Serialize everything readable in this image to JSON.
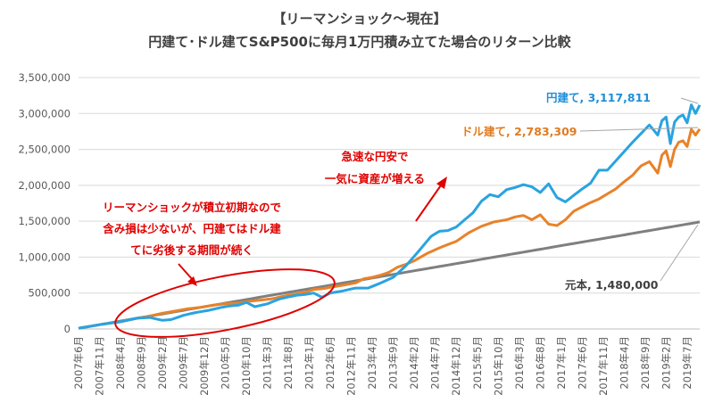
{
  "chart_data": {
    "type": "line",
    "title": "【リーマンショック〜現在】",
    "subtitle": "円建て･ドル建てS&P500に毎月1万円積み立てた場合のリターン比較",
    "ylim": [
      0,
      3500000
    ],
    "yticks": [
      0,
      500000,
      1000000,
      1500000,
      2000000,
      2500000,
      3000000,
      3500000
    ],
    "ytick_labels": [
      "0",
      "500,000",
      "1,000,000",
      "1,500,000",
      "2,000,000",
      "2,500,000",
      "3,000,000",
      "3,500,000"
    ],
    "start": "2007年6月",
    "months": 148,
    "x_tick_labels": [
      "2007年6月",
      "2007年11月",
      "2008年4月",
      "2008年9月",
      "2009年2月",
      "2009年7月",
      "2009年12月",
      "2010年5月",
      "2010年10月",
      "2011年3月",
      "2011年8月",
      "2012年1月",
      "2012年6月",
      "2012年11月",
      "2013年4月",
      "2013年9月",
      "2014年2月",
      "2014年7月",
      "2014年12月",
      "2015年5月",
      "2015年10月",
      "2016年3月",
      "2016年8月",
      "2017年1月",
      "2017年6月",
      "2017年11月",
      "2018年4月",
      "2018年9月",
      "2019年2月",
      "2019年7月"
    ],
    "x_tick_step": 5,
    "series": [
      {
        "name": "円建て",
        "color": "#29a3e0",
        "end_label": "円建て, 3,117,811",
        "anchors": [
          [
            0,
            10000
          ],
          [
            5,
            60000
          ],
          [
            10,
            100000
          ],
          [
            14,
            150000
          ],
          [
            17,
            160000
          ],
          [
            20,
            120000
          ],
          [
            22,
            130000
          ],
          [
            25,
            190000
          ],
          [
            28,
            230000
          ],
          [
            31,
            260000
          ],
          [
            34,
            300000
          ],
          [
            36,
            320000
          ],
          [
            38,
            330000
          ],
          [
            40,
            370000
          ],
          [
            42,
            310000
          ],
          [
            45,
            350000
          ],
          [
            48,
            420000
          ],
          [
            52,
            470000
          ],
          [
            54,
            480000
          ],
          [
            56,
            500000
          ],
          [
            58,
            440000
          ],
          [
            60,
            500000
          ],
          [
            63,
            530000
          ],
          [
            66,
            570000
          ],
          [
            69,
            570000
          ],
          [
            72,
            640000
          ],
          [
            75,
            720000
          ],
          [
            78,
            880000
          ],
          [
            81,
            1080000
          ],
          [
            84,
            1290000
          ],
          [
            86,
            1360000
          ],
          [
            88,
            1370000
          ],
          [
            90,
            1420000
          ],
          [
            92,
            1520000
          ],
          [
            94,
            1620000
          ],
          [
            96,
            1780000
          ],
          [
            98,
            1870000
          ],
          [
            100,
            1840000
          ],
          [
            102,
            1940000
          ],
          [
            104,
            1970000
          ],
          [
            106,
            2010000
          ],
          [
            108,
            1980000
          ],
          [
            110,
            1900000
          ],
          [
            112,
            2020000
          ],
          [
            114,
            1830000
          ],
          [
            116,
            1770000
          ],
          [
            118,
            1860000
          ],
          [
            120,
            1950000
          ],
          [
            122,
            2030000
          ],
          [
            124,
            2210000
          ],
          [
            126,
            2210000
          ],
          [
            128,
            2340000
          ],
          [
            130,
            2470000
          ],
          [
            132,
            2600000
          ],
          [
            134,
            2720000
          ],
          [
            136,
            2840000
          ],
          [
            138,
            2700000
          ],
          [
            139,
            2900000
          ],
          [
            140,
            2950000
          ],
          [
            141,
            2580000
          ],
          [
            142,
            2880000
          ],
          [
            143,
            2950000
          ],
          [
            144,
            2980000
          ],
          [
            145,
            2870000
          ],
          [
            146,
            3120000
          ],
          [
            147,
            3000000
          ],
          [
            148,
            3117811
          ]
        ]
      },
      {
        "name": "ドル建て",
        "color": "#e8822a",
        "end_label": "ドル建て, 2,783,309",
        "anchors": [
          [
            0,
            10000
          ],
          [
            5,
            60000
          ],
          [
            10,
            100000
          ],
          [
            14,
            150000
          ],
          [
            17,
            180000
          ],
          [
            20,
            220000
          ],
          [
            23,
            250000
          ],
          [
            26,
            280000
          ],
          [
            29,
            300000
          ],
          [
            32,
            330000
          ],
          [
            35,
            350000
          ],
          [
            38,
            360000
          ],
          [
            40,
            380000
          ],
          [
            43,
            400000
          ],
          [
            46,
            420000
          ],
          [
            50,
            470000
          ],
          [
            54,
            510000
          ],
          [
            56,
            550000
          ],
          [
            58,
            560000
          ],
          [
            60,
            580000
          ],
          [
            62,
            600000
          ],
          [
            64,
            620000
          ],
          [
            66,
            640000
          ],
          [
            68,
            700000
          ],
          [
            70,
            720000
          ],
          [
            72,
            750000
          ],
          [
            74,
            790000
          ],
          [
            76,
            860000
          ],
          [
            78,
            900000
          ],
          [
            80,
            950000
          ],
          [
            83,
            1050000
          ],
          [
            86,
            1130000
          ],
          [
            90,
            1220000
          ],
          [
            93,
            1340000
          ],
          [
            96,
            1430000
          ],
          [
            99,
            1490000
          ],
          [
            102,
            1520000
          ],
          [
            104,
            1560000
          ],
          [
            106,
            1580000
          ],
          [
            108,
            1520000
          ],
          [
            110,
            1590000
          ],
          [
            112,
            1460000
          ],
          [
            114,
            1440000
          ],
          [
            116,
            1520000
          ],
          [
            118,
            1640000
          ],
          [
            120,
            1700000
          ],
          [
            122,
            1760000
          ],
          [
            124,
            1810000
          ],
          [
            126,
            1880000
          ],
          [
            128,
            1950000
          ],
          [
            130,
            2050000
          ],
          [
            132,
            2140000
          ],
          [
            134,
            2270000
          ],
          [
            136,
            2330000
          ],
          [
            138,
            2170000
          ],
          [
            139,
            2420000
          ],
          [
            140,
            2480000
          ],
          [
            141,
            2260000
          ],
          [
            142,
            2500000
          ],
          [
            143,
            2600000
          ],
          [
            144,
            2620000
          ],
          [
            145,
            2540000
          ],
          [
            146,
            2780000
          ],
          [
            147,
            2700000
          ],
          [
            148,
            2783309
          ]
        ]
      },
      {
        "name": "元本",
        "color": "#7f7f7f",
        "end_label": "元本, 1,480,000",
        "linear_step": 10000
      }
    ],
    "annotations": [
      {
        "lines": [
          "急速な円安で",
          "一気に資産が増える"
        ]
      },
      {
        "lines": [
          "リーマンショックが積立初期なので",
          "含み損は少ないが、円建てはドル建",
          "てに劣後する期間が続く"
        ]
      }
    ],
    "grid": true,
    "legend": "none"
  }
}
